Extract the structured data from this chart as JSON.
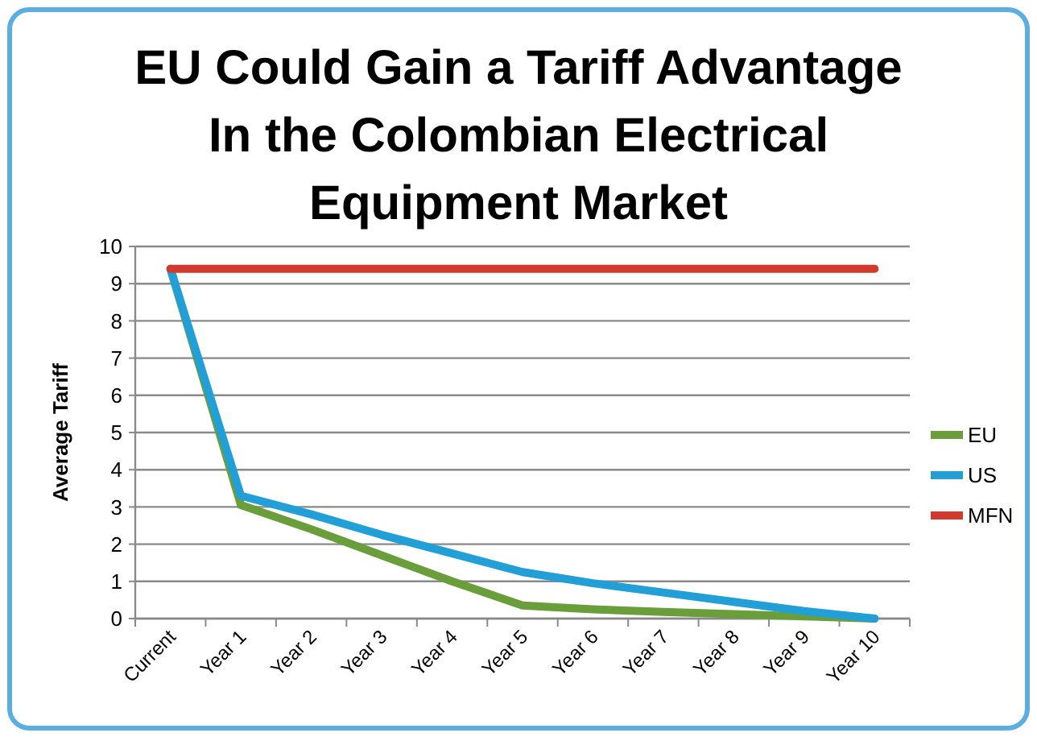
{
  "chart_data": {
    "type": "line",
    "title": "EU Could Gain a Tariff Advantage In the Colombian Electrical Equipment Market",
    "ylabel": "Average Tariff",
    "categories": [
      "Current",
      "Year 1",
      "Year 2",
      "Year 3",
      "Year 4",
      "Year 5",
      "Year 6",
      "Year 7",
      "Year 8",
      "Year 9",
      "Year 10"
    ],
    "series": [
      {
        "name": "EU",
        "color": "#6a9e3b",
        "values": [
          9.4,
          3.05,
          2.4,
          1.7,
          1.0,
          0.35,
          0.25,
          0.18,
          0.12,
          0.06,
          0
        ]
      },
      {
        "name": "US",
        "color": "#219fd6",
        "values": [
          9.4,
          3.3,
          2.8,
          2.25,
          1.75,
          1.25,
          0.95,
          0.7,
          0.45,
          0.2,
          0
        ]
      },
      {
        "name": "MFN",
        "color": "#d13a2c",
        "values": [
          9.4,
          9.4,
          9.4,
          9.4,
          9.4,
          9.4,
          9.4,
          9.4,
          9.4,
          9.4,
          9.4
        ]
      }
    ],
    "ylim": [
      0,
      10
    ],
    "yticks": [
      0,
      1,
      2,
      3,
      4,
      5,
      6,
      7,
      8,
      9,
      10
    ],
    "grid": "y",
    "legend": "right",
    "marker": "none",
    "line_style": "solid"
  }
}
